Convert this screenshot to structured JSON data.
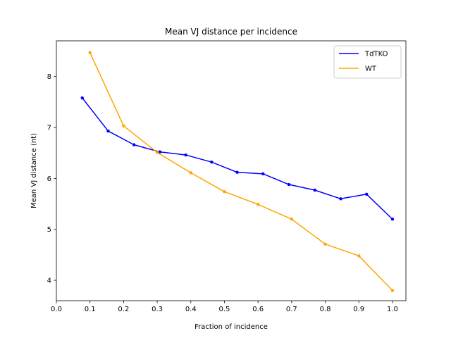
{
  "chart_data": {
    "type": "line",
    "title": "Mean VJ distance per incidence",
    "xlabel": "Fraction of incidence",
    "ylabel": "Mean VJ distance (nt)",
    "xlim": [
      0.0,
      1.04
    ],
    "ylim": [
      3.6,
      8.7
    ],
    "xticks": [
      "0.0",
      "0.1",
      "0.2",
      "0.3",
      "0.4",
      "0.5",
      "0.6",
      "0.7",
      "0.8",
      "0.9",
      "1.0"
    ],
    "yticks": [
      "4",
      "5",
      "6",
      "7",
      "8"
    ],
    "grid": false,
    "legend_position": "top-right",
    "series": [
      {
        "name": "TdTKO",
        "color": "#0000ff",
        "x": [
          0.077,
          0.154,
          0.231,
          0.308,
          0.385,
          0.462,
          0.538,
          0.615,
          0.692,
          0.769,
          0.846,
          0.923,
          1.0
        ],
        "y": [
          7.58,
          6.93,
          6.66,
          6.52,
          6.46,
          6.32,
          6.12,
          6.09,
          5.88,
          5.77,
          5.6,
          5.69,
          5.2
        ]
      },
      {
        "name": "WT",
        "color": "#ffa500",
        "x": [
          0.1,
          0.2,
          0.3,
          0.4,
          0.5,
          0.6,
          0.7,
          0.8,
          0.9,
          1.0
        ],
        "y": [
          8.47,
          7.03,
          6.51,
          6.11,
          5.74,
          5.49,
          5.2,
          4.71,
          4.48,
          3.8
        ]
      }
    ]
  }
}
